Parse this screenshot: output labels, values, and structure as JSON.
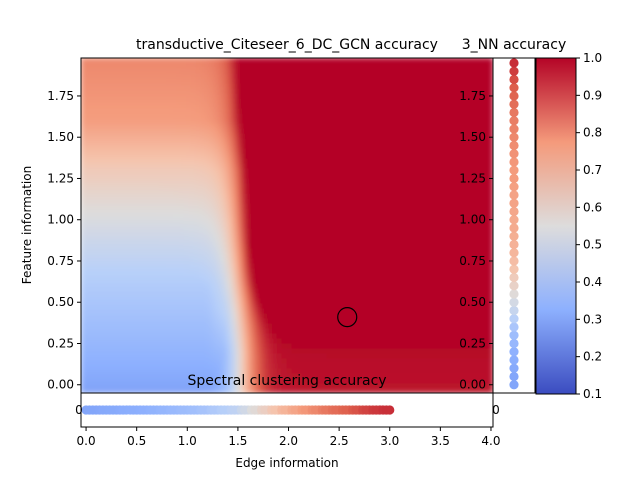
{
  "chart_data": [
    {
      "type": "heatmap",
      "title": "transductive_Citeseer_6_DC_GCN accuracy",
      "xlabel": "Edge information",
      "ylabel": "Feature information",
      "xlim": [
        -0.05,
        4.02
      ],
      "ylim": [
        -0.05,
        1.98
      ],
      "xticks": [
        0.0,
        0.5,
        1.0,
        1.5,
        2.0,
        2.5,
        3.0,
        3.5,
        4.0
      ],
      "xtick_labels": [
        "0.0",
        "0.5",
        "1.0",
        "1.5",
        "2.0",
        "2.5",
        "3.0",
        "3.5",
        "4.0"
      ],
      "yticks": [
        0.0,
        0.25,
        0.5,
        0.75,
        1.0,
        1.25,
        1.5,
        1.75
      ],
      "ytick_labels": [
        "0.00",
        "0.25",
        "0.50",
        "0.75",
        "1.00",
        "1.25",
        "1.50",
        "1.75"
      ],
      "colormap": "coolwarm",
      "value_range": [
        0.1,
        1.0
      ],
      "grid": false,
      "annotations": [
        {
          "type": "circle-marker",
          "x": 2.58,
          "y": 0.41
        }
      ]
    },
    {
      "type": "scatter",
      "title": "3_NN accuracy",
      "description": "vertical strip of accuracy vs feature information",
      "x": 0,
      "ylim": [
        -0.05,
        1.98
      ],
      "yticks": [
        0.0,
        0.25,
        0.5,
        0.75,
        1.0,
        1.25,
        1.5,
        1.75
      ],
      "ytick_labels": [
        "0.00",
        "0.25",
        "0.50",
        "0.75",
        "1.00",
        "1.25",
        "1.50",
        "1.75"
      ],
      "y": [
        0.0,
        0.05,
        0.1,
        0.15,
        0.2,
        0.25,
        0.3,
        0.35,
        0.4,
        0.45,
        0.5,
        0.55,
        0.6,
        0.65,
        0.7,
        0.75,
        0.8,
        0.85,
        0.9,
        0.95,
        1.0,
        1.05,
        1.1,
        1.15,
        1.2,
        1.25,
        1.3,
        1.35,
        1.4,
        1.45,
        1.5,
        1.55,
        1.6,
        1.65,
        1.7,
        1.75,
        1.8,
        1.85,
        1.9,
        1.95
      ],
      "values": [
        0.3,
        0.3,
        0.31,
        0.32,
        0.33,
        0.35,
        0.37,
        0.4,
        0.44,
        0.48,
        0.52,
        0.56,
        0.6,
        0.63,
        0.66,
        0.68,
        0.7,
        0.71,
        0.72,
        0.73,
        0.73,
        0.74,
        0.75,
        0.75,
        0.76,
        0.77,
        0.77,
        0.78,
        0.79,
        0.8,
        0.81,
        0.82,
        0.83,
        0.84,
        0.86,
        0.88,
        0.89,
        0.91,
        0.93,
        0.95
      ],
      "stub_label": "0"
    },
    {
      "type": "scatter",
      "title": "Spectral clustering accuracy",
      "description": "horizontal strip of accuracy vs edge information",
      "y": 0,
      "xlim": [
        -0.05,
        4.02
      ],
      "x": [
        0.0,
        0.1,
        0.2,
        0.3,
        0.4,
        0.5,
        0.6,
        0.7,
        0.8,
        0.9,
        1.0,
        1.1,
        1.2,
        1.3,
        1.4,
        1.5,
        1.6,
        1.7,
        1.8,
        1.9,
        2.0,
        2.1,
        2.2,
        2.3,
        2.4,
        2.5,
        2.6,
        2.7,
        2.8,
        2.9,
        3.0
      ],
      "values": [
        0.3,
        0.3,
        0.31,
        0.31,
        0.32,
        0.32,
        0.33,
        0.34,
        0.35,
        0.36,
        0.37,
        0.38,
        0.4,
        0.42,
        0.44,
        0.47,
        0.53,
        0.58,
        0.63,
        0.68,
        0.72,
        0.76,
        0.79,
        0.82,
        0.85,
        0.87,
        0.89,
        0.91,
        0.93,
        0.94,
        0.95
      ],
      "stub_label": "0"
    },
    {
      "type": "colorbar",
      "colormap": "coolwarm",
      "range": [
        0.1,
        1.0
      ],
      "ticks": [
        0.1,
        0.2,
        0.3,
        0.4,
        0.5,
        0.6,
        0.7,
        0.8,
        0.9,
        1.0
      ],
      "tick_labels": [
        "0.1",
        "0.2",
        "0.3",
        "0.4",
        "0.5",
        "0.6",
        "0.7",
        "0.8",
        "0.9",
        "1.0"
      ]
    }
  ]
}
